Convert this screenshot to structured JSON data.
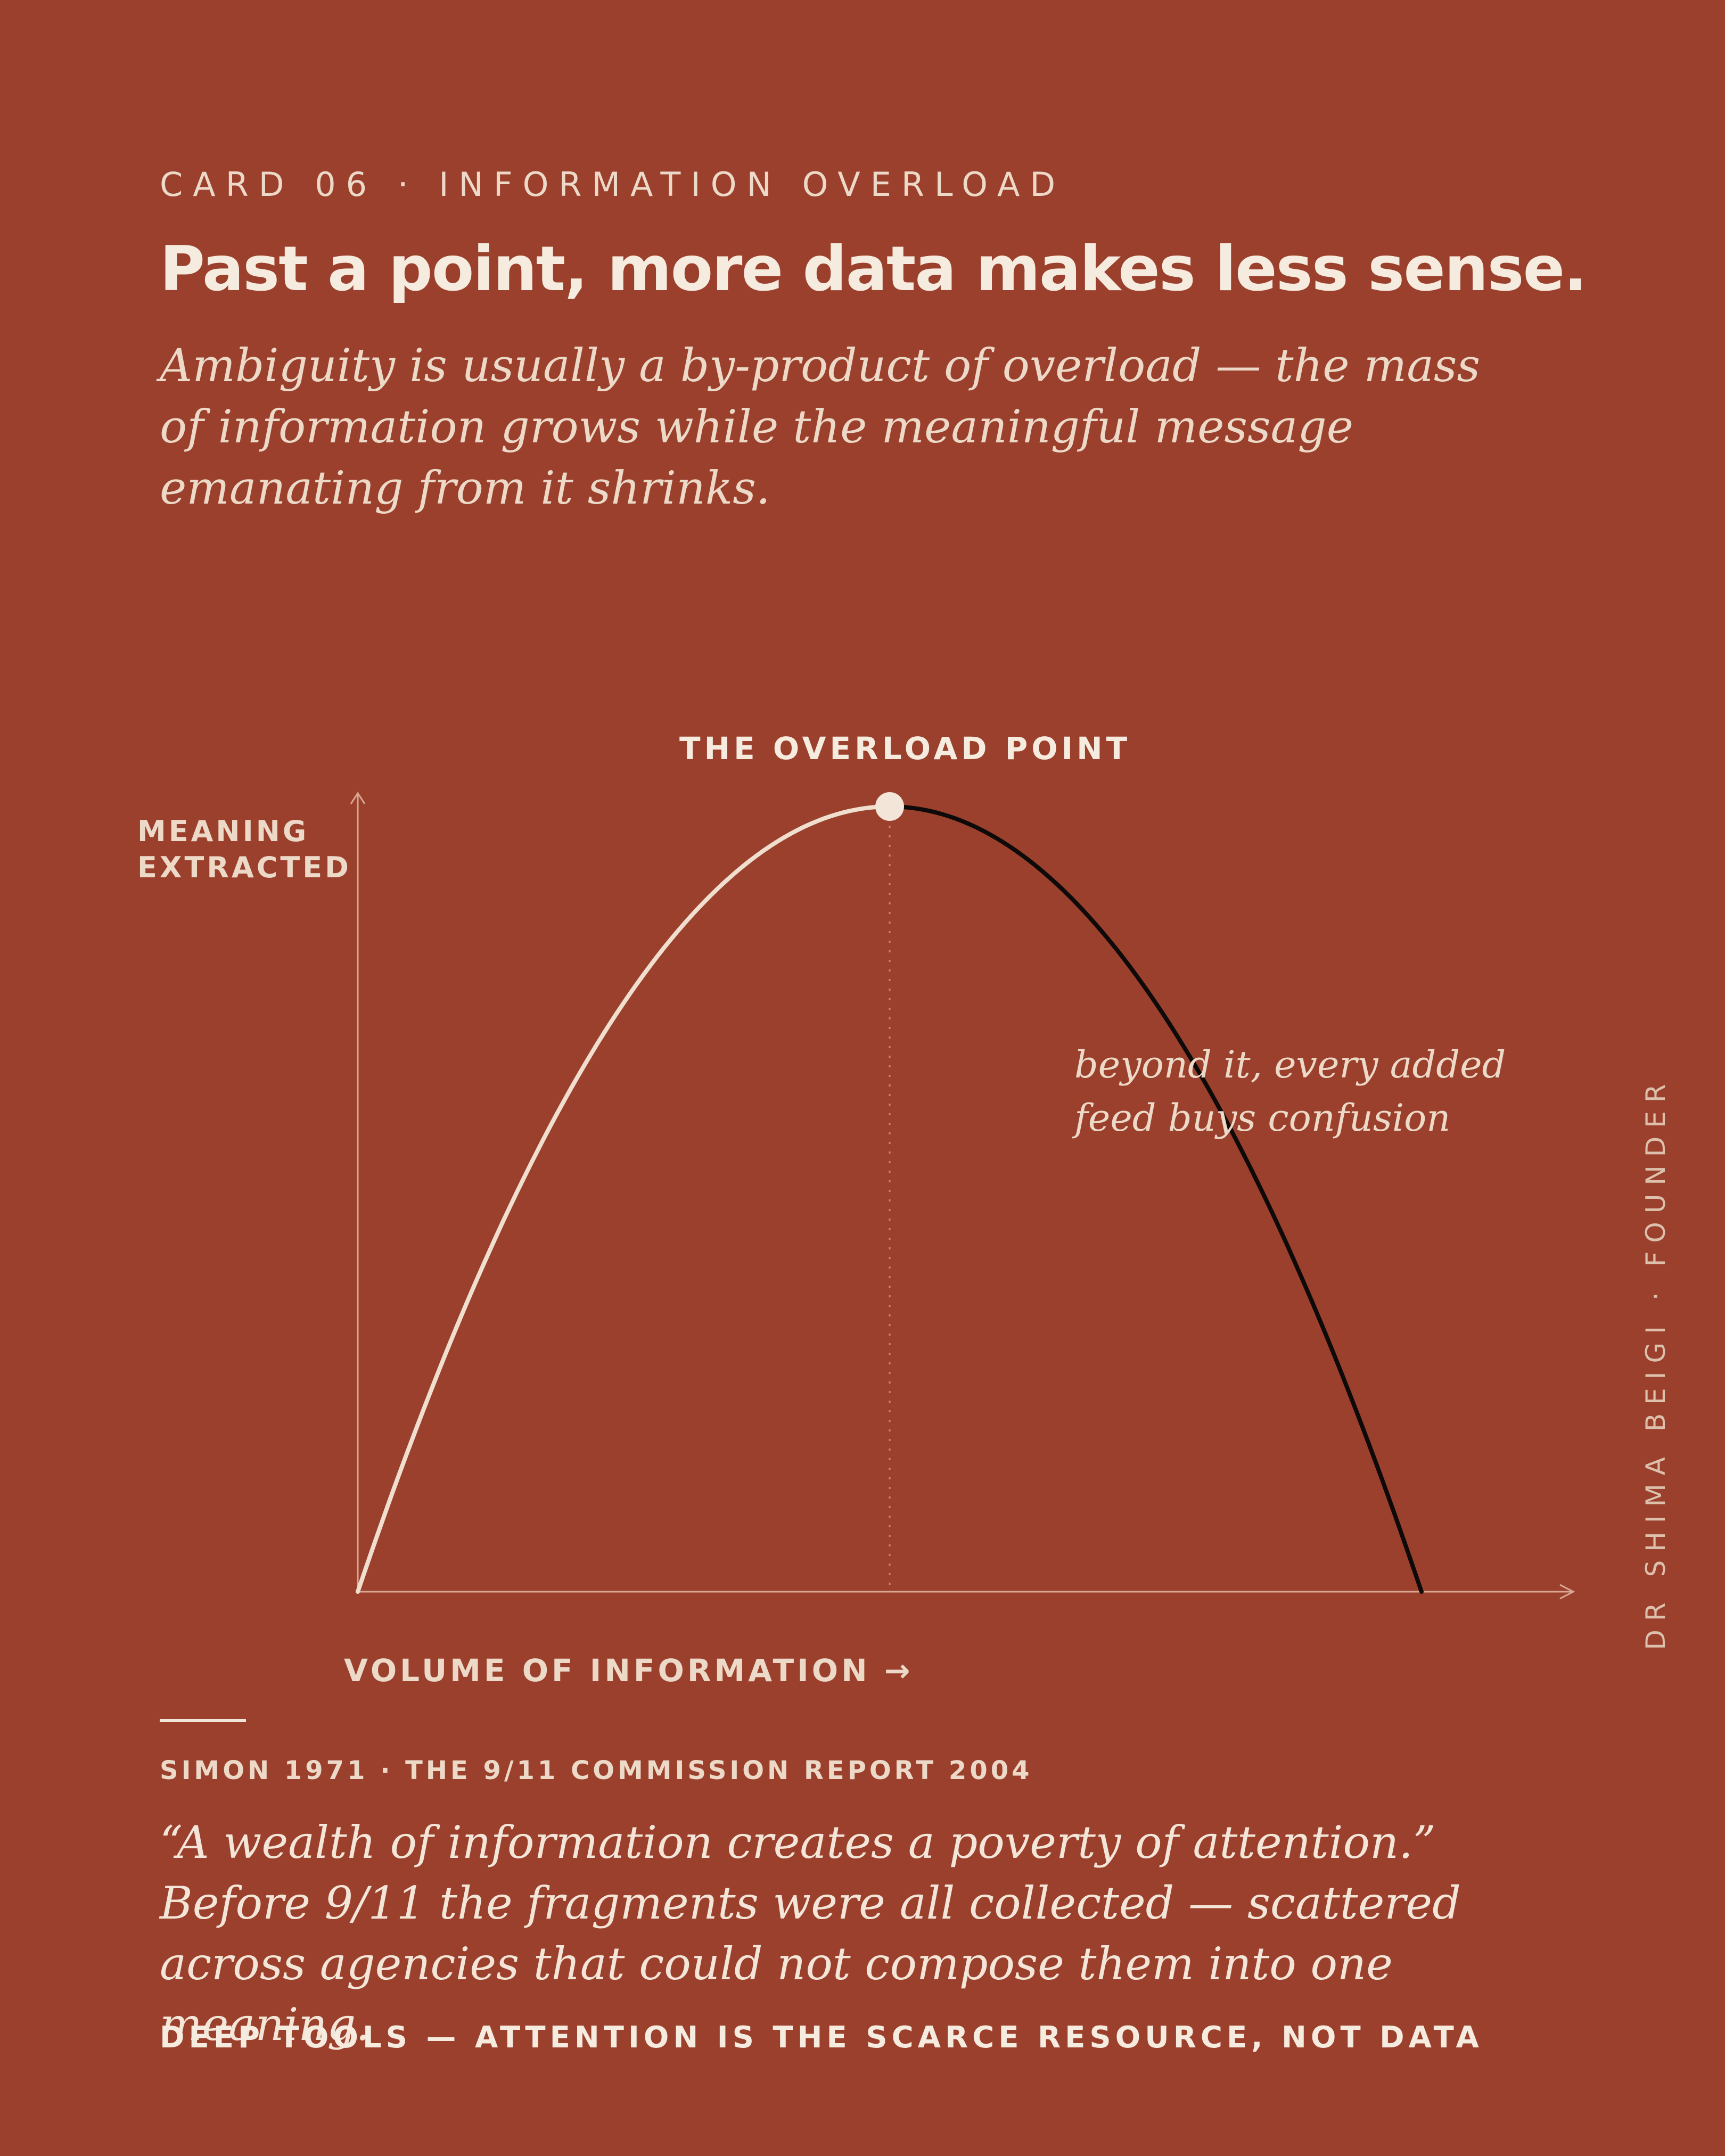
{
  "card": {
    "kicker": "CARD 06 · INFORMATION OVERLOAD",
    "headline": "Past a point, more data makes less sense.",
    "lede": "Ambiguity is usually a by-product of overload — the mass of information grows while the meaningful message emanating from it shrinks.",
    "byline": "DR SHIMA BEIGI · FOUNDER"
  },
  "chart_data": {
    "type": "line",
    "title": "THE OVERLOAD POINT",
    "xlabel": "VOLUME OF INFORMATION →",
    "ylabel": "MEANING EXTRACTED",
    "annotation": "beyond it, every added feed buys confusion",
    "x_ticks_shown": false,
    "y_ticks_shown": false,
    "grid": false,
    "xlim": [
      0,
      1
    ],
    "ylim": [
      0,
      1
    ],
    "peak": {
      "x": 0.5,
      "y": 1.0
    },
    "series": [
      {
        "segment": "before-peak",
        "color": "#f0dfcf",
        "x": [
          0,
          0.5
        ],
        "y": [
          0,
          1
        ]
      },
      {
        "segment": "after-peak",
        "color": "#0e0a09",
        "x": [
          0.5,
          1
        ],
        "y": [
          1,
          0
        ]
      }
    ],
    "colors": {
      "background": "#9b402d",
      "axis": "#d9a892",
      "guide": "#c98a74",
      "marker": "#f3e6d8"
    }
  },
  "footer": {
    "source": "SIMON 1971 · THE 9/11 COMMISSION REPORT 2004",
    "quote": "“A wealth of information creates a poverty of attention.” Before 9/11 the fragments were all collected — scattered across agencies that could not compose them into one meaning.",
    "tagline": "DEEP TOOLS — ATTENTION IS THE SCARCE RESOURCE, NOT DATA"
  }
}
